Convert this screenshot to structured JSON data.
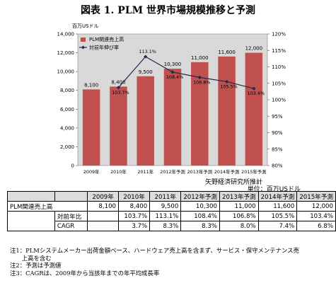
{
  "title": "図表 1. PLM 世界市場規模推移と予測",
  "chart_data": {
    "type": "bar",
    "categories": [
      "2009年",
      "2010年",
      "2011年",
      "2012年予測",
      "2013年予測",
      "2014年予測",
      "2015年予測"
    ],
    "series": [
      {
        "name": "PLM関連売上高",
        "type": "bar",
        "values": [
          8100,
          8400,
          9500,
          10300,
          11000,
          11600,
          12000
        ],
        "axis": "left"
      },
      {
        "name": "対前年伸び率",
        "type": "line",
        "values": [
          null,
          103.7,
          113.1,
          108.4,
          106.8,
          105.5,
          103.4
        ],
        "axis": "right"
      }
    ],
    "bar_labels": [
      "8,100",
      "8,400",
      "9,500",
      "10,300",
      "11,000",
      "11,600",
      "12,000"
    ],
    "line_labels": [
      "",
      "103.7%",
      "113.1%",
      "108.4%",
      "106.8%",
      "105.5%",
      "103.4%"
    ],
    "ylabel": "百万USドル",
    "ylim": [
      0,
      14000
    ],
    "y_ticks": [
      "0",
      "2,000",
      "4,000",
      "6,000",
      "8,000",
      "10,000",
      "12,000",
      "14,000"
    ],
    "y2lim": [
      80,
      120
    ],
    "y2_ticks": [
      "80%",
      "85%",
      "90%",
      "95%",
      "100%",
      "105%",
      "110%",
      "115%",
      "120%"
    ],
    "legend_position": "top-left",
    "grid": false,
    "colors": {
      "bar": "#c0504d",
      "plot_bg": "#d9d9d9",
      "line": "#1f2a4d"
    }
  },
  "source": "矢野経済研究所推計",
  "unit": "単位：百万USドル",
  "table": {
    "headers": [
      "",
      "",
      "2009年",
      "2010年",
      "2011年",
      "2012年予測",
      "2013年予測",
      "2014年予測",
      "2015年予測"
    ],
    "rows": [
      {
        "group": "PLM関連売上高",
        "label": "",
        "cells": [
          "8,100",
          "8,400",
          "9,500",
          "10,300",
          "11,000",
          "11,600",
          "12,000"
        ]
      },
      {
        "group": "",
        "label": "対前年比",
        "cells": [
          "",
          "103.7%",
          "113.1%",
          "108.4%",
          "106.8%",
          "105.5%",
          "103.4%"
        ]
      },
      {
        "group": "",
        "label": "CAGR",
        "cells": [
          "",
          "3.7%",
          "8.3%",
          "8.3%",
          "8.0%",
          "7.4%",
          "6.8%"
        ]
      }
    ]
  },
  "notes": [
    "注1：PLMシステムメーカー出荷金額ベース、ハードウェア売上高を含まず、サービス・保守メンテナンス売",
    "　　上高を含む",
    "注2：予測は予測値",
    "注3：CAGRは、2009年から当該年までの年平均成長率"
  ]
}
